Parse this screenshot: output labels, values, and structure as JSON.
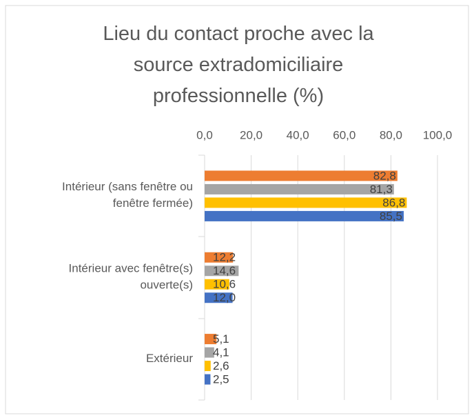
{
  "chart_data": {
    "type": "bar",
    "orientation": "horizontal",
    "title": "Lieu du contact proche avec la source extradomiciliaire professionnelle  (%)",
    "categories": [
      "Intérieur (sans fenêtre ou fenêtre fermée)",
      "Intérieur avec fenêtre(s) ouverte(s)",
      "Extérieur"
    ],
    "series": [
      {
        "color": "#ED7D31",
        "values": [
          82.8,
          12.2,
          5.1
        ],
        "value_labels": [
          "82,8",
          "12,2",
          "5,1"
        ]
      },
      {
        "color": "#A5A5A5",
        "values": [
          81.3,
          14.6,
          4.1
        ],
        "value_labels": [
          "81,3",
          "14,6",
          "4,1"
        ]
      },
      {
        "color": "#FFC000",
        "values": [
          86.8,
          10.6,
          2.6
        ],
        "value_labels": [
          "86,8",
          "10,6",
          "2,6"
        ]
      },
      {
        "color": "#4472C4",
        "values": [
          85.5,
          12.0,
          2.5
        ],
        "value_labels": [
          "85,5",
          "12,0",
          "2,5"
        ]
      }
    ],
    "xlim": [
      0,
      100
    ],
    "xticks": [
      {
        "value": 0,
        "label": "0,0"
      },
      {
        "value": 20,
        "label": "20,0"
      },
      {
        "value": 40,
        "label": "40,0"
      },
      {
        "value": 60,
        "label": "60,0"
      },
      {
        "value": 80,
        "label": "80,0"
      },
      {
        "value": 100,
        "label": "100,0"
      }
    ],
    "grid": true
  }
}
